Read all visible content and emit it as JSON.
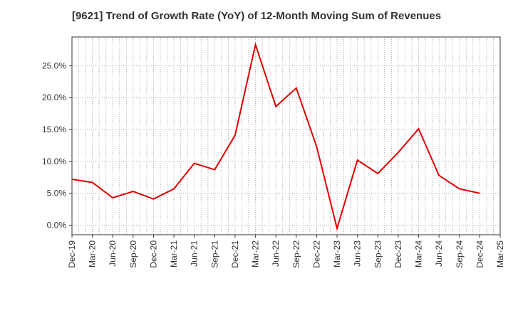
{
  "chart_data": {
    "type": "line",
    "title": "[9621]  Trend of Growth Rate (YoY) of 12-Month Moving Sum of Revenues",
    "xlabel": "",
    "ylabel": "",
    "x_tick_labels": [
      "Dec-19",
      "Mar-20",
      "Jun-20",
      "Sep-20",
      "Dec-20",
      "Mar-21",
      "Jun-21",
      "Sep-21",
      "Dec-21",
      "Mar-22",
      "Jun-22",
      "Sep-22",
      "Dec-22",
      "Mar-23",
      "Jun-23",
      "Sep-23",
      "Dec-23",
      "Mar-24",
      "Jun-24",
      "Sep-24",
      "Dec-24",
      "Mar-25"
    ],
    "y_ticks": [
      0,
      5,
      10,
      15,
      20,
      25
    ],
    "y_tick_labels": [
      "0.0%",
      "5.0%",
      "10.0%",
      "15.0%",
      "20.0%",
      "25.0%"
    ],
    "ylim": [
      -1.5,
      29.5
    ],
    "grid": true,
    "legend": "none",
    "series": [
      {
        "color": "#e00000",
        "x": [
          "Dec-19",
          "Mar-20",
          "Jun-20",
          "Sep-20",
          "Dec-20",
          "Mar-21",
          "Jun-21",
          "Sep-21",
          "Dec-21",
          "Mar-22",
          "Jun-22",
          "Sep-22",
          "Dec-22",
          "Mar-23",
          "Jun-23",
          "Sep-23",
          "Dec-23",
          "Mar-24",
          "Jun-24",
          "Sep-24",
          "Dec-24"
        ],
        "values": [
          7.2,
          6.7,
          4.3,
          5.3,
          4.1,
          5.7,
          9.7,
          8.7,
          14.1,
          28.3,
          18.6,
          21.5,
          12.3,
          -0.5,
          10.2,
          8.1,
          11.4,
          15.1,
          7.8,
          5.7,
          5.0
        ]
      }
    ]
  }
}
